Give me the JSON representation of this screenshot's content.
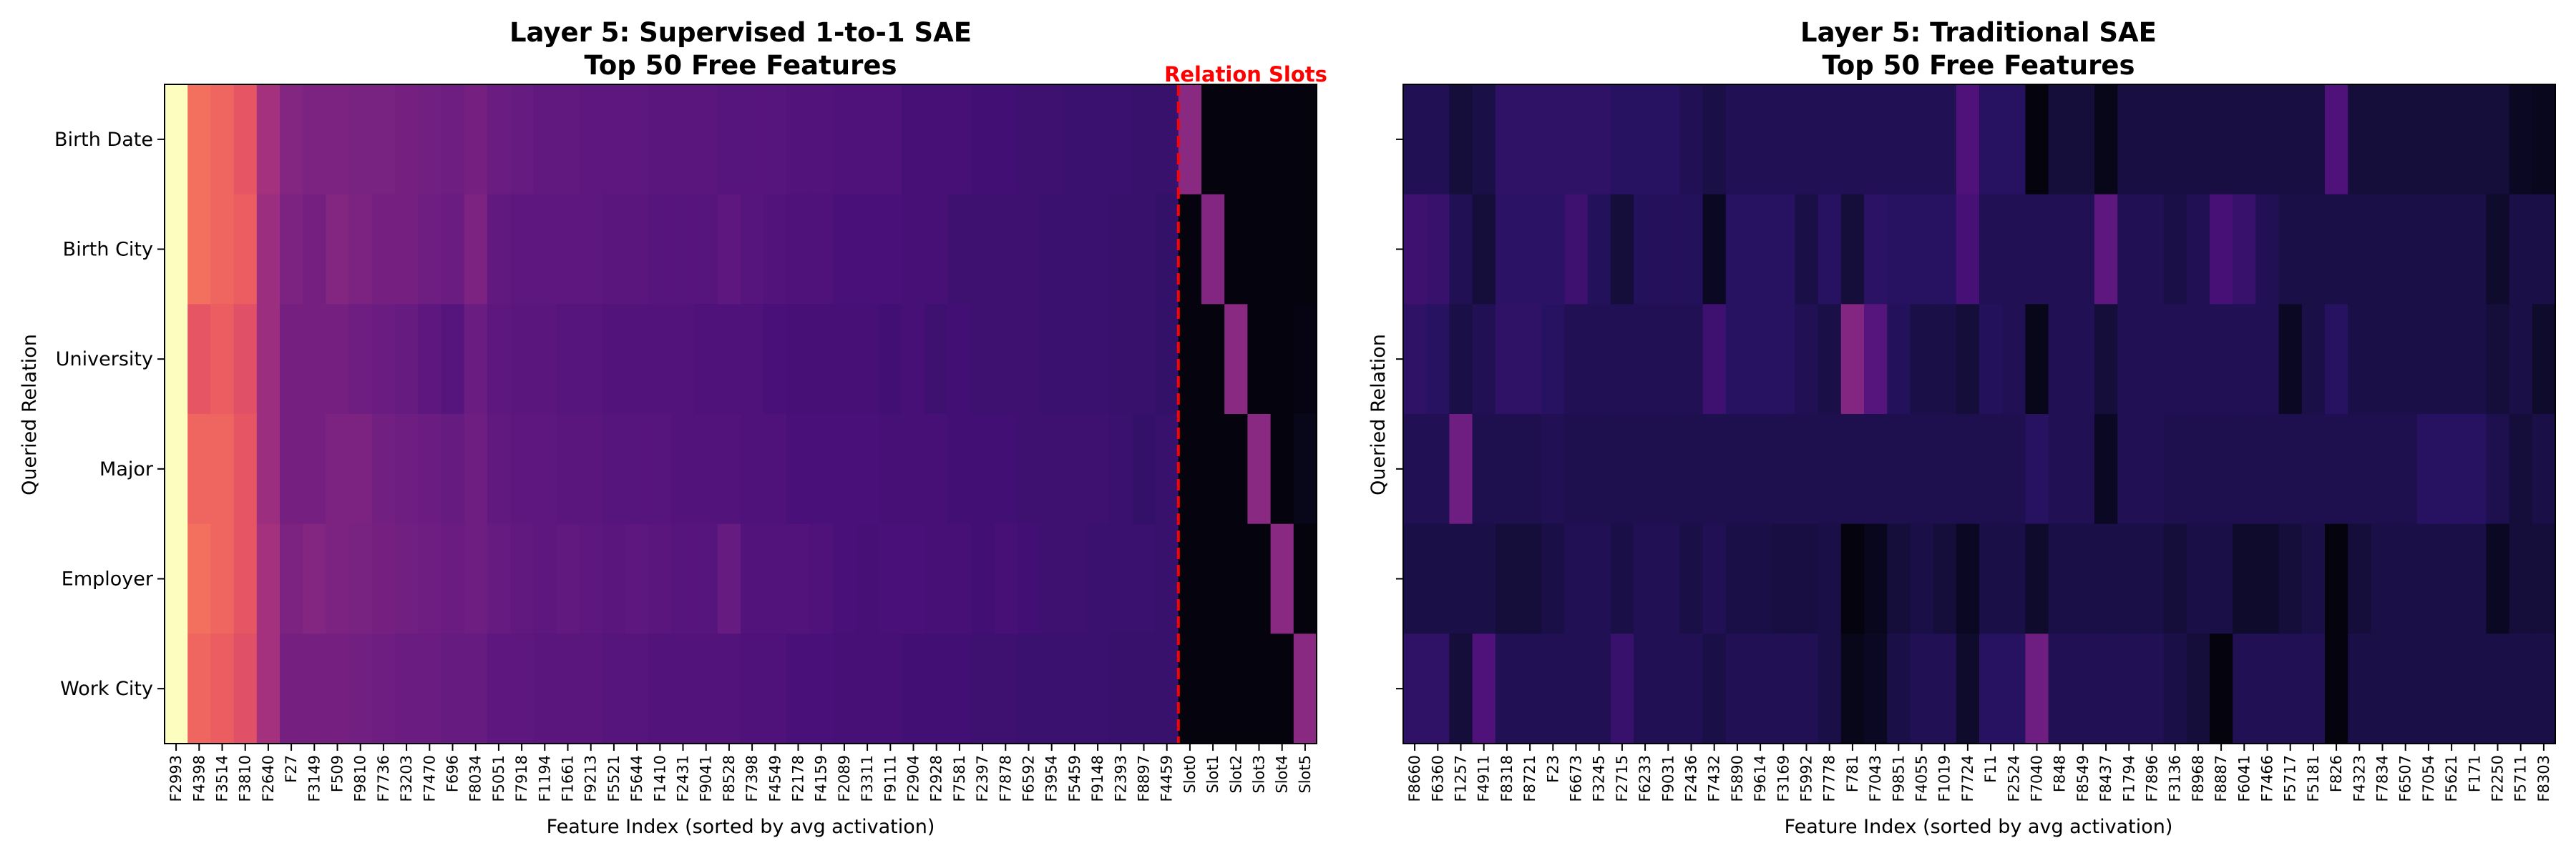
{
  "chart_data": [
    {
      "type": "heatmap",
      "title_line1": "Layer 5: Supervised 1-to-1 SAE",
      "title_line2": "Top 50 Free Features",
      "xlabel": "Feature Index (sorted by avg activation)",
      "ylabel": "Queried Relation",
      "colormap": "magma",
      "annotation": "Relation Slots",
      "annotation_color": "#ff0000",
      "divider_after_column": 50,
      "rows": [
        "Birth Date",
        "Birth City",
        "University",
        "Major",
        "Employer",
        "Work City"
      ],
      "columns": [
        "F2993",
        "F4398",
        "F3514",
        "F3810",
        "F2640",
        "F27",
        "F3149",
        "F509",
        "F9810",
        "F7736",
        "F3203",
        "F7470",
        "F696",
        "F8034",
        "F5051",
        "F7918",
        "F1194",
        "F1661",
        "F9213",
        "F5521",
        "F5644",
        "F1410",
        "F2431",
        "F9041",
        "F8528",
        "F7398",
        "F4549",
        "F2178",
        "F4159",
        "F2089",
        "F3311",
        "F9111",
        "F2904",
        "F2928",
        "F7581",
        "F2397",
        "F7878",
        "F6592",
        "F3954",
        "F5459",
        "F9148",
        "F2393",
        "F8897",
        "F4459",
        "Slot0",
        "Slot1",
        "Slot2",
        "Slot3",
        "Slot4",
        "Slot5"
      ],
      "values": [
        [
          1.0,
          0.72,
          0.7,
          0.66,
          0.48,
          0.4,
          0.38,
          0.38,
          0.37,
          0.37,
          0.36,
          0.35,
          0.34,
          0.36,
          0.33,
          0.32,
          0.31,
          0.31,
          0.3,
          0.3,
          0.3,
          0.29,
          0.29,
          0.29,
          0.28,
          0.28,
          0.28,
          0.27,
          0.27,
          0.26,
          0.26,
          0.26,
          0.24,
          0.24,
          0.24,
          0.23,
          0.23,
          0.22,
          0.22,
          0.21,
          0.21,
          0.21,
          0.2,
          0.2,
          0.42,
          0.02,
          0.02,
          0.02,
          0.02,
          0.02
        ],
        [
          1.0,
          0.72,
          0.7,
          0.68,
          0.46,
          0.38,
          0.36,
          0.4,
          0.38,
          0.36,
          0.36,
          0.34,
          0.33,
          0.38,
          0.31,
          0.3,
          0.3,
          0.3,
          0.3,
          0.29,
          0.29,
          0.28,
          0.28,
          0.28,
          0.3,
          0.28,
          0.27,
          0.26,
          0.26,
          0.25,
          0.25,
          0.25,
          0.24,
          0.24,
          0.22,
          0.22,
          0.22,
          0.22,
          0.21,
          0.21,
          0.21,
          0.2,
          0.2,
          0.19,
          0.02,
          0.4,
          0.02,
          0.02,
          0.02,
          0.02
        ],
        [
          1.0,
          0.66,
          0.68,
          0.64,
          0.46,
          0.36,
          0.36,
          0.36,
          0.34,
          0.33,
          0.32,
          0.3,
          0.28,
          0.33,
          0.3,
          0.29,
          0.29,
          0.28,
          0.28,
          0.27,
          0.27,
          0.27,
          0.27,
          0.26,
          0.26,
          0.26,
          0.25,
          0.24,
          0.24,
          0.24,
          0.24,
          0.23,
          0.24,
          0.22,
          0.23,
          0.22,
          0.22,
          0.22,
          0.21,
          0.21,
          0.21,
          0.2,
          0.2,
          0.19,
          0.02,
          0.02,
          0.42,
          0.02,
          0.02,
          0.03
        ],
        [
          1.0,
          0.7,
          0.7,
          0.66,
          0.46,
          0.36,
          0.36,
          0.38,
          0.38,
          0.35,
          0.34,
          0.33,
          0.32,
          0.34,
          0.31,
          0.3,
          0.3,
          0.29,
          0.29,
          0.28,
          0.28,
          0.28,
          0.27,
          0.27,
          0.27,
          0.26,
          0.26,
          0.25,
          0.25,
          0.25,
          0.25,
          0.24,
          0.24,
          0.24,
          0.23,
          0.23,
          0.23,
          0.22,
          0.22,
          0.22,
          0.22,
          0.21,
          0.19,
          0.2,
          0.02,
          0.02,
          0.02,
          0.42,
          0.02,
          0.04
        ],
        [
          1.0,
          0.72,
          0.7,
          0.66,
          0.48,
          0.38,
          0.4,
          0.38,
          0.37,
          0.36,
          0.35,
          0.34,
          0.33,
          0.34,
          0.32,
          0.31,
          0.3,
          0.31,
          0.3,
          0.29,
          0.3,
          0.29,
          0.28,
          0.28,
          0.32,
          0.27,
          0.27,
          0.27,
          0.26,
          0.25,
          0.24,
          0.25,
          0.25,
          0.24,
          0.24,
          0.23,
          0.24,
          0.23,
          0.22,
          0.22,
          0.21,
          0.21,
          0.21,
          0.2,
          0.02,
          0.02,
          0.02,
          0.02,
          0.42,
          0.02
        ],
        [
          1.0,
          0.7,
          0.68,
          0.64,
          0.48,
          0.36,
          0.36,
          0.36,
          0.35,
          0.34,
          0.33,
          0.33,
          0.32,
          0.32,
          0.3,
          0.3,
          0.29,
          0.29,
          0.29,
          0.28,
          0.28,
          0.27,
          0.27,
          0.27,
          0.27,
          0.26,
          0.26,
          0.25,
          0.25,
          0.24,
          0.24,
          0.24,
          0.23,
          0.23,
          0.23,
          0.22,
          0.22,
          0.21,
          0.21,
          0.21,
          0.21,
          0.2,
          0.2,
          0.2,
          0.02,
          0.02,
          0.02,
          0.02,
          0.02,
          0.42
        ]
      ]
    },
    {
      "type": "heatmap",
      "title_line1": "Layer 5: Traditional SAE",
      "title_line2": "Top 50 Free Features",
      "xlabel": "Feature Index (sorted by avg activation)",
      "ylabel": "Queried Relation",
      "colormap": "magma",
      "rows": [
        "Birth Date",
        "Birth City",
        "University",
        "Major",
        "Employer",
        "Work City"
      ],
      "columns": [
        "F8660",
        "F6360",
        "F1257",
        "F4911",
        "F8318",
        "F8721",
        "F23",
        "F6673",
        "F3245",
        "F2715",
        "F6233",
        "F9031",
        "F2436",
        "F7432",
        "F5890",
        "F9614",
        "F3169",
        "F5992",
        "F7778",
        "F781",
        "F7043",
        "F9851",
        "F4055",
        "F1019",
        "F7724",
        "F11",
        "F2524",
        "F7040",
        "F848",
        "F8549",
        "F8437",
        "F1794",
        "F7896",
        "F3136",
        "F8968",
        "F8887",
        "F6041",
        "F7466",
        "F5717",
        "F5181",
        "F826",
        "F4323",
        "F7834",
        "F6507",
        "F7054",
        "F5621",
        "F171",
        "F2250",
        "F5711",
        "F8303"
      ],
      "values": [
        [
          0.14,
          0.14,
          0.1,
          0.12,
          0.18,
          0.18,
          0.18,
          0.18,
          0.18,
          0.16,
          0.16,
          0.16,
          0.14,
          0.12,
          0.14,
          0.14,
          0.14,
          0.14,
          0.14,
          0.14,
          0.14,
          0.14,
          0.14,
          0.14,
          0.26,
          0.16,
          0.16,
          0.02,
          0.1,
          0.1,
          0.04,
          0.11,
          0.11,
          0.11,
          0.11,
          0.11,
          0.11,
          0.11,
          0.11,
          0.11,
          0.26,
          0.1,
          0.1,
          0.1,
          0.1,
          0.1,
          0.1,
          0.1,
          0.06,
          0.05
        ],
        [
          0.22,
          0.2,
          0.14,
          0.1,
          0.17,
          0.17,
          0.17,
          0.22,
          0.15,
          0.1,
          0.15,
          0.15,
          0.15,
          0.06,
          0.16,
          0.16,
          0.16,
          0.12,
          0.16,
          0.1,
          0.17,
          0.16,
          0.16,
          0.16,
          0.24,
          0.14,
          0.14,
          0.14,
          0.14,
          0.14,
          0.3,
          0.14,
          0.14,
          0.12,
          0.14,
          0.24,
          0.2,
          0.14,
          0.12,
          0.12,
          0.12,
          0.12,
          0.12,
          0.12,
          0.12,
          0.12,
          0.12,
          0.08,
          0.12,
          0.12
        ],
        [
          0.18,
          0.16,
          0.12,
          0.14,
          0.18,
          0.18,
          0.16,
          0.14,
          0.14,
          0.14,
          0.14,
          0.14,
          0.14,
          0.22,
          0.16,
          0.16,
          0.16,
          0.14,
          0.12,
          0.4,
          0.28,
          0.15,
          0.12,
          0.12,
          0.1,
          0.15,
          0.14,
          0.04,
          0.14,
          0.14,
          0.1,
          0.14,
          0.14,
          0.14,
          0.14,
          0.14,
          0.14,
          0.14,
          0.06,
          0.12,
          0.16,
          0.12,
          0.12,
          0.12,
          0.12,
          0.12,
          0.12,
          0.1,
          0.12,
          0.08
        ],
        [
          0.14,
          0.14,
          0.34,
          0.13,
          0.13,
          0.13,
          0.14,
          0.13,
          0.13,
          0.13,
          0.13,
          0.13,
          0.13,
          0.13,
          0.13,
          0.13,
          0.13,
          0.13,
          0.13,
          0.13,
          0.13,
          0.13,
          0.13,
          0.13,
          0.13,
          0.13,
          0.13,
          0.16,
          0.14,
          0.14,
          0.06,
          0.14,
          0.14,
          0.13,
          0.13,
          0.13,
          0.13,
          0.13,
          0.13,
          0.13,
          0.13,
          0.13,
          0.13,
          0.13,
          0.16,
          0.16,
          0.16,
          0.13,
          0.1,
          0.12
        ],
        [
          0.12,
          0.12,
          0.12,
          0.12,
          0.1,
          0.1,
          0.12,
          0.14,
          0.14,
          0.12,
          0.14,
          0.14,
          0.12,
          0.14,
          0.12,
          0.12,
          0.11,
          0.11,
          0.12,
          0.02,
          0.05,
          0.1,
          0.12,
          0.1,
          0.06,
          0.12,
          0.12,
          0.08,
          0.12,
          0.12,
          0.12,
          0.12,
          0.12,
          0.1,
          0.12,
          0.12,
          0.08,
          0.08,
          0.1,
          0.12,
          0.02,
          0.1,
          0.12,
          0.12,
          0.12,
          0.12,
          0.12,
          0.06,
          0.1,
          0.1
        ],
        [
          0.18,
          0.18,
          0.1,
          0.26,
          0.14,
          0.14,
          0.14,
          0.14,
          0.14,
          0.2,
          0.14,
          0.14,
          0.14,
          0.12,
          0.14,
          0.14,
          0.14,
          0.14,
          0.12,
          0.04,
          0.06,
          0.12,
          0.14,
          0.14,
          0.08,
          0.16,
          0.16,
          0.34,
          0.14,
          0.14,
          0.14,
          0.14,
          0.14,
          0.12,
          0.1,
          0.02,
          0.14,
          0.14,
          0.14,
          0.14,
          0.02,
          0.12,
          0.12,
          0.12,
          0.12,
          0.12,
          0.12,
          0.12,
          0.12,
          0.12
        ]
      ]
    }
  ]
}
